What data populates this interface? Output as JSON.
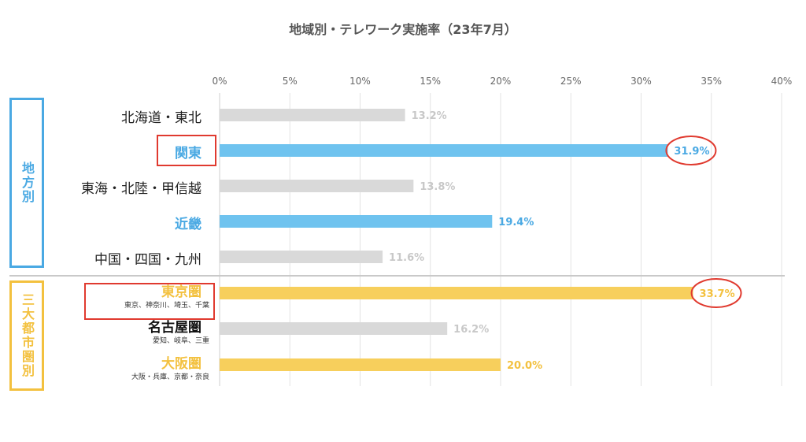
{
  "chart_data": {
    "type": "bar",
    "orientation": "horizontal",
    "title": "地域別・テレワーク実施率（23年7月）",
    "xlim": [
      0,
      40
    ],
    "x_ticks": [
      "0%",
      "5%",
      "10%",
      "15%",
      "20%",
      "25%",
      "30%",
      "35%",
      "40%"
    ],
    "grid": true,
    "groups": [
      {
        "label": "地方別",
        "color": "#4aa9e3"
      },
      {
        "label": "三大都市圏別",
        "color": "#f3c13f"
      }
    ],
    "categories": [
      {
        "name": "北海道・東北",
        "sub": "",
        "value": 13.2,
        "value_label": "13.2%",
        "color": "#d9d9d9",
        "label_color": "#222222",
        "highlight": false
      },
      {
        "name": "関東",
        "sub": "",
        "value": 31.9,
        "value_label": "31.9%",
        "color": "#6fc3ef",
        "label_color": "#4aa9e3",
        "highlight": true
      },
      {
        "name": "東海・北陸・甲信越",
        "sub": "",
        "value": 13.8,
        "value_label": "13.8%",
        "color": "#d9d9d9",
        "label_color": "#222222",
        "highlight": false
      },
      {
        "name": "近畿",
        "sub": "",
        "value": 19.4,
        "value_label": "19.4%",
        "color": "#6fc3ef",
        "label_color": "#4aa9e3",
        "highlight": false
      },
      {
        "name": "中国・四国・九州",
        "sub": "",
        "value": 11.6,
        "value_label": "11.6%",
        "color": "#d9d9d9",
        "label_color": "#222222",
        "highlight": false
      },
      {
        "name": "東京圏",
        "sub": "東京、神奈川、埼玉、千葉",
        "value": 33.7,
        "value_label": "33.7%",
        "color": "#f7cf5c",
        "label_color": "#f3c13f",
        "highlight": true
      },
      {
        "name": "名古屋圏",
        "sub": "愛知、岐阜、三重",
        "value": 16.2,
        "value_label": "16.2%",
        "color": "#d9d9d9",
        "label_color": "#111111",
        "highlight": false
      },
      {
        "name": "大阪圏",
        "sub": "大阪・兵庫、京都・奈良",
        "value": 20.0,
        "value_label": "20.0%",
        "color": "#f7cf5c",
        "label_color": "#f3c13f",
        "highlight": false
      }
    ],
    "highlight_color": "#e03a2f",
    "grey_value_color": "#c8c8c8"
  }
}
